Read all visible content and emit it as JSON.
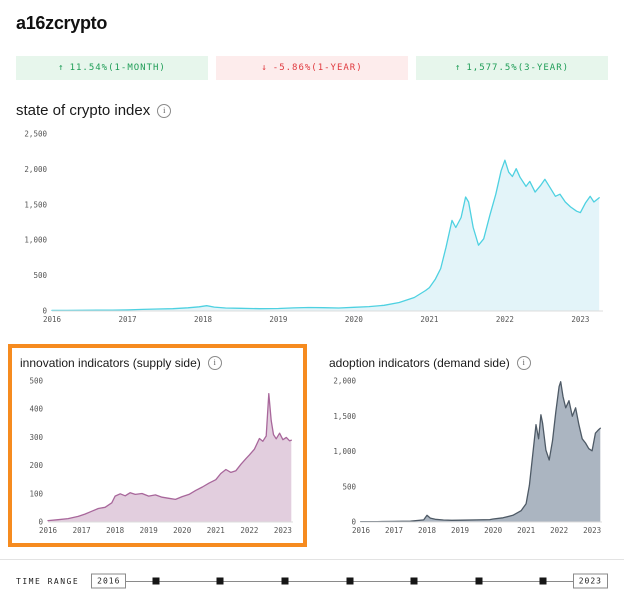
{
  "header": {
    "logo": "a16zcrypto"
  },
  "colors": {
    "positive": "#1f9d57",
    "positive_bg": "#e7f6ec",
    "negative": "#e0393e",
    "negative_bg": "#fdecec",
    "highlight_orange": "#f68b1f",
    "index_line": "#4ed1e1",
    "index_fill": "#e3f4f9",
    "innovation_line": "#a8679b",
    "innovation_fill": "#e2cede",
    "adoption_line": "#4e5a66",
    "adoption_fill": "#abb5c1"
  },
  "badges": [
    {
      "direction": "up",
      "arrow": "↑",
      "label": "11.54%(1-MONTH)"
    },
    {
      "direction": "down",
      "arrow": "↓",
      "label": "-5.86%(1-YEAR)"
    },
    {
      "direction": "up",
      "arrow": "↑",
      "label": "1,577.5%(3-YEAR)"
    }
  ],
  "time_range": {
    "label": "TIME RANGE",
    "start": "2016",
    "end": "2023"
  },
  "chart_data": [
    {
      "type": "area",
      "title": "state of crypto index",
      "x_ticks": [
        "2016",
        "2017",
        "2018",
        "2019",
        "2020",
        "2021",
        "2022",
        "2023"
      ],
      "y_ticks": [
        0,
        500,
        1000,
        1500,
        2000,
        2500
      ],
      "y_tick_labels": [
        "0",
        "500",
        "1,000",
        "1,500",
        "2,000",
        "2,500"
      ],
      "xlim": [
        2016,
        2023.3
      ],
      "ylim": [
        0,
        2500
      ],
      "line_color": "#4ed1e1",
      "fill_color": "#e3f4f9",
      "points": [
        [
          2016.0,
          8
        ],
        [
          2016.2,
          9
        ],
        [
          2016.4,
          10
        ],
        [
          2016.6,
          11
        ],
        [
          2016.8,
          13
        ],
        [
          2017.0,
          16
        ],
        [
          2017.2,
          22
        ],
        [
          2017.4,
          28
        ],
        [
          2017.6,
          32
        ],
        [
          2017.8,
          45
        ],
        [
          2017.95,
          60
        ],
        [
          2018.05,
          75
        ],
        [
          2018.15,
          55
        ],
        [
          2018.3,
          42
        ],
        [
          2018.5,
          38
        ],
        [
          2018.75,
          33
        ],
        [
          2019.0,
          36
        ],
        [
          2019.2,
          44
        ],
        [
          2019.4,
          50
        ],
        [
          2019.6,
          47
        ],
        [
          2019.8,
          42
        ],
        [
          2020.0,
          52
        ],
        [
          2020.2,
          62
        ],
        [
          2020.4,
          80
        ],
        [
          2020.6,
          120
        ],
        [
          2020.8,
          190
        ],
        [
          2020.95,
          290
        ],
        [
          2021.0,
          330
        ],
        [
          2021.08,
          450
        ],
        [
          2021.15,
          600
        ],
        [
          2021.22,
          900
        ],
        [
          2021.3,
          1280
        ],
        [
          2021.35,
          1180
        ],
        [
          2021.42,
          1320
        ],
        [
          2021.48,
          1610
        ],
        [
          2021.52,
          1540
        ],
        [
          2021.58,
          1180
        ],
        [
          2021.65,
          930
        ],
        [
          2021.72,
          1020
        ],
        [
          2021.8,
          1350
        ],
        [
          2021.88,
          1650
        ],
        [
          2021.95,
          1980
        ],
        [
          2022.0,
          2130
        ],
        [
          2022.05,
          1960
        ],
        [
          2022.1,
          1900
        ],
        [
          2022.15,
          2010
        ],
        [
          2022.2,
          1890
        ],
        [
          2022.28,
          1760
        ],
        [
          2022.33,
          1830
        ],
        [
          2022.4,
          1680
        ],
        [
          2022.47,
          1770
        ],
        [
          2022.53,
          1860
        ],
        [
          2022.6,
          1740
        ],
        [
          2022.67,
          1620
        ],
        [
          2022.73,
          1650
        ],
        [
          2022.8,
          1540
        ],
        [
          2022.87,
          1470
        ],
        [
          2022.95,
          1410
        ],
        [
          2023.0,
          1390
        ],
        [
          2023.07,
          1530
        ],
        [
          2023.13,
          1620
        ],
        [
          2023.18,
          1540
        ],
        [
          2023.25,
          1600
        ]
      ]
    },
    {
      "type": "area",
      "title": "innovation indicators (supply side)",
      "x_ticks": [
        "2016",
        "2017",
        "2018",
        "2019",
        "2020",
        "2021",
        "2022",
        "2023"
      ],
      "y_ticks": [
        0,
        100,
        200,
        300,
        400,
        500
      ],
      "y_tick_labels": [
        "0",
        "100",
        "200",
        "300",
        "400",
        "500"
      ],
      "xlim": [
        2016,
        2023.3
      ],
      "ylim": [
        0,
        500
      ],
      "line_color": "#a8679b",
      "fill_color": "#e2cede",
      "points": [
        [
          2016.0,
          5
        ],
        [
          2016.3,
          8
        ],
        [
          2016.6,
          12
        ],
        [
          2016.9,
          20
        ],
        [
          2017.1,
          28
        ],
        [
          2017.3,
          38
        ],
        [
          2017.5,
          48
        ],
        [
          2017.7,
          52
        ],
        [
          2017.9,
          68
        ],
        [
          2018.0,
          92
        ],
        [
          2018.15,
          100
        ],
        [
          2018.3,
          93
        ],
        [
          2018.45,
          104
        ],
        [
          2018.6,
          98
        ],
        [
          2018.8,
          101
        ],
        [
          2019.0,
          92
        ],
        [
          2019.2,
          96
        ],
        [
          2019.4,
          88
        ],
        [
          2019.6,
          84
        ],
        [
          2019.8,
          80
        ],
        [
          2020.0,
          90
        ],
        [
          2020.2,
          98
        ],
        [
          2020.4,
          112
        ],
        [
          2020.6,
          124
        ],
        [
          2020.8,
          138
        ],
        [
          2021.0,
          150
        ],
        [
          2021.15,
          172
        ],
        [
          2021.3,
          186
        ],
        [
          2021.45,
          176
        ],
        [
          2021.6,
          182
        ],
        [
          2021.75,
          205
        ],
        [
          2021.9,
          225
        ],
        [
          2022.0,
          238
        ],
        [
          2022.15,
          258
        ],
        [
          2022.3,
          296
        ],
        [
          2022.4,
          286
        ],
        [
          2022.5,
          305
        ],
        [
          2022.58,
          455
        ],
        [
          2022.65,
          360
        ],
        [
          2022.72,
          310
        ],
        [
          2022.8,
          295
        ],
        [
          2022.9,
          315
        ],
        [
          2023.0,
          292
        ],
        [
          2023.1,
          300
        ],
        [
          2023.2,
          288
        ],
        [
          2023.25,
          290
        ]
      ]
    },
    {
      "type": "area",
      "title": "adoption indicators (demand side)",
      "x_ticks": [
        "2016",
        "2017",
        "2018",
        "2019",
        "2020",
        "2021",
        "2022",
        "2023"
      ],
      "y_ticks": [
        0,
        500,
        1000,
        1500,
        2000
      ],
      "y_tick_labels": [
        "0",
        "500",
        "1,000",
        "1,500",
        "2,000"
      ],
      "xlim": [
        2016,
        2023.3
      ],
      "ylim": [
        0,
        2000
      ],
      "line_color": "#4e5a66",
      "fill_color": "#abb5c1",
      "points": [
        [
          2016.0,
          5
        ],
        [
          2016.5,
          6
        ],
        [
          2017.0,
          8
        ],
        [
          2017.5,
          12
        ],
        [
          2017.9,
          30
        ],
        [
          2018.0,
          95
        ],
        [
          2018.1,
          55
        ],
        [
          2018.25,
          38
        ],
        [
          2018.5,
          28
        ],
        [
          2018.75,
          24
        ],
        [
          2019.0,
          26
        ],
        [
          2019.5,
          30
        ],
        [
          2019.9,
          34
        ],
        [
          2020.0,
          42
        ],
        [
          2020.3,
          60
        ],
        [
          2020.6,
          95
        ],
        [
          2020.85,
          160
        ],
        [
          2021.0,
          260
        ],
        [
          2021.1,
          520
        ],
        [
          2021.2,
          950
        ],
        [
          2021.3,
          1380
        ],
        [
          2021.38,
          1180
        ],
        [
          2021.45,
          1520
        ],
        [
          2021.5,
          1400
        ],
        [
          2021.6,
          1020
        ],
        [
          2021.7,
          880
        ],
        [
          2021.8,
          1150
        ],
        [
          2021.9,
          1560
        ],
        [
          2022.0,
          1920
        ],
        [
          2022.05,
          1990
        ],
        [
          2022.12,
          1780
        ],
        [
          2022.2,
          1620
        ],
        [
          2022.3,
          1720
        ],
        [
          2022.4,
          1500
        ],
        [
          2022.5,
          1620
        ],
        [
          2022.6,
          1380
        ],
        [
          2022.7,
          1180
        ],
        [
          2022.8,
          1120
        ],
        [
          2022.9,
          1040
        ],
        [
          2023.0,
          1010
        ],
        [
          2023.1,
          1260
        ],
        [
          2023.2,
          1310
        ],
        [
          2023.25,
          1330
        ]
      ]
    }
  ]
}
